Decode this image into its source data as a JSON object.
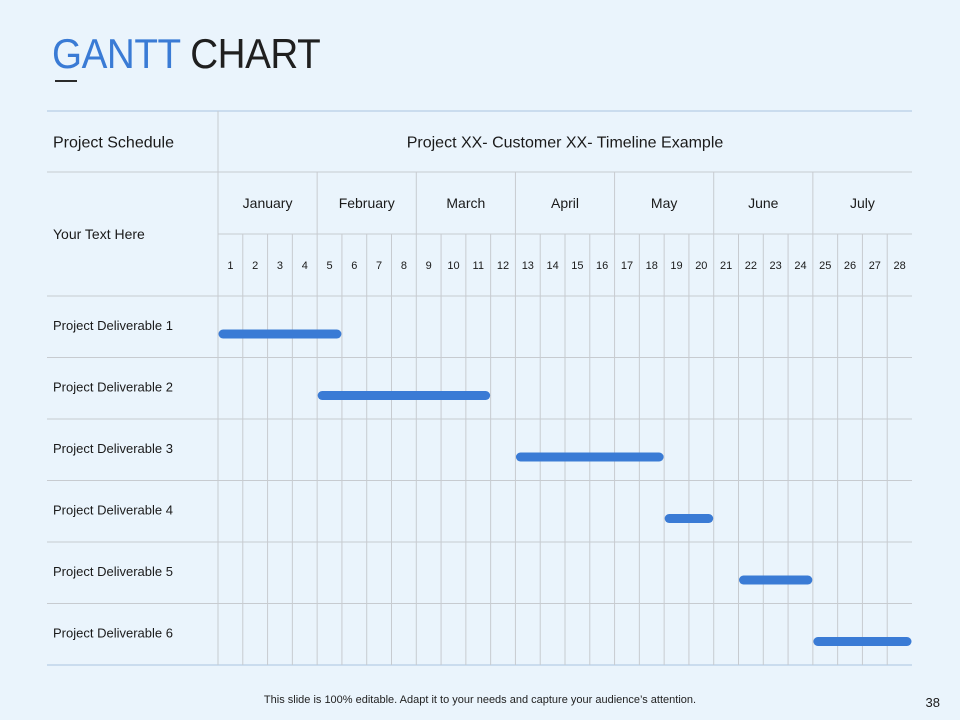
{
  "title": {
    "accent": "GANTT",
    "rest": " CHART"
  },
  "footer": "This slide is 100% editable. Adapt it to your needs and capture your audience’s attention.",
  "page_number": "38",
  "colors": {
    "bar": "#3a7bd5",
    "grid": "#c7cbd0",
    "accent": "#3a7bd5"
  },
  "chart_data": {
    "type": "gantt",
    "header_left": "Project Schedule",
    "header_right": "Project XX- Customer XX- Timeline Example",
    "subheader_left": "Your Text Here",
    "months": [
      {
        "name": "January",
        "weeks": [
          1,
          2,
          3,
          4
        ]
      },
      {
        "name": "February",
        "weeks": [
          5,
          6,
          7,
          8
        ]
      },
      {
        "name": "March",
        "weeks": [
          9,
          10,
          11,
          12
        ]
      },
      {
        "name": "April",
        "weeks": [
          13,
          14,
          15,
          16
        ]
      },
      {
        "name": "May",
        "weeks": [
          17,
          18,
          19,
          20
        ]
      },
      {
        "name": "June",
        "weeks": [
          21,
          22,
          23,
          24
        ]
      },
      {
        "name": "July",
        "weeks": [
          25,
          26,
          27,
          28
        ]
      }
    ],
    "weeks": [
      "1",
      "2",
      "3",
      "4",
      "5",
      "6",
      "7",
      "8",
      "9",
      "10",
      "11",
      "12",
      "13",
      "14",
      "15",
      "16",
      "17",
      "18",
      "19",
      "20",
      "21",
      "22",
      "23",
      "24",
      "25",
      "26",
      "27",
      "28"
    ],
    "tasks": [
      {
        "name": "Project Deliverable 1",
        "start_week": 1,
        "end_week": 5
      },
      {
        "name": "Project Deliverable 2",
        "start_week": 5,
        "end_week": 11
      },
      {
        "name": "Project Deliverable 3",
        "start_week": 13,
        "end_week": 18
      },
      {
        "name": "Project Deliverable 4",
        "start_week": 19,
        "end_week": 20
      },
      {
        "name": "Project Deliverable 5",
        "start_week": 22,
        "end_week": 24
      },
      {
        "name": "Project Deliverable 6",
        "start_week": 25,
        "end_week": 28
      }
    ]
  }
}
